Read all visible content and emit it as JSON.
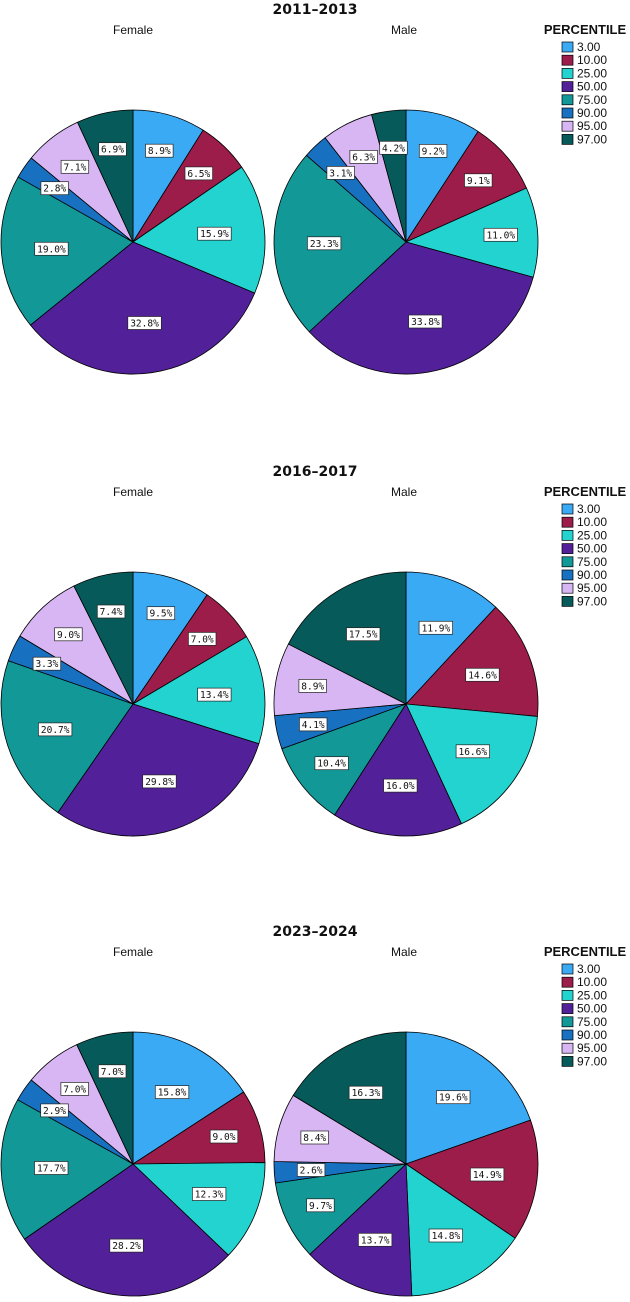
{
  "chart_data": [
    {
      "type": "pie",
      "title": "2011–2013",
      "legend_title": "PERCENTILE",
      "legend_position": "right",
      "categories": [
        "3.00",
        "10.00",
        "25.00",
        "50.00",
        "75.00",
        "90.00",
        "95.00",
        "97.00"
      ],
      "colors": [
        "#3aaaf4",
        "#9c1c4a",
        "#22d3d0",
        "#52219a",
        "#139898",
        "#1870c0",
        "#d8b6f4",
        "#075a5a"
      ],
      "series": [
        {
          "name": "Female",
          "values": [
            8.9,
            6.5,
            15.9,
            32.8,
            19.0,
            2.8,
            7.1,
            6.9
          ]
        },
        {
          "name": "Male",
          "values": [
            9.2,
            9.1,
            11.0,
            33.8,
            23.3,
            3.1,
            6.3,
            4.2
          ]
        }
      ]
    },
    {
      "type": "pie",
      "title": "2016–2017",
      "legend_title": "PERCENTILE",
      "legend_position": "right",
      "categories": [
        "3.00",
        "10.00",
        "25.00",
        "50.00",
        "75.00",
        "90.00",
        "95.00",
        "97.00"
      ],
      "colors": [
        "#3aaaf4",
        "#9c1c4a",
        "#22d3d0",
        "#52219a",
        "#139898",
        "#1870c0",
        "#d8b6f4",
        "#075a5a"
      ],
      "series": [
        {
          "name": "Female",
          "values": [
            9.5,
            7.0,
            13.4,
            29.8,
            20.7,
            3.3,
            9.0,
            7.4
          ]
        },
        {
          "name": "Male",
          "values": [
            11.9,
            14.6,
            16.6,
            16.0,
            10.4,
            4.1,
            8.9,
            17.5
          ]
        }
      ]
    },
    {
      "type": "pie",
      "title": "2023–2024",
      "legend_title": "PERCENTILE",
      "legend_position": "right",
      "categories": [
        "3.00",
        "10.00",
        "25.00",
        "50.00",
        "75.00",
        "90.00",
        "95.00",
        "97.00"
      ],
      "colors": [
        "#3aaaf4",
        "#9c1c4a",
        "#22d3d0",
        "#52219a",
        "#139898",
        "#1870c0",
        "#d8b6f4",
        "#075a5a"
      ],
      "series": [
        {
          "name": "Female",
          "values": [
            15.8,
            9.0,
            12.3,
            28.2,
            17.7,
            2.9,
            7.0,
            7.0
          ]
        },
        {
          "name": "Male",
          "values": [
            19.6,
            14.9,
            14.8,
            13.7,
            9.7,
            2.6,
            8.4,
            16.3
          ]
        }
      ]
    }
  ]
}
